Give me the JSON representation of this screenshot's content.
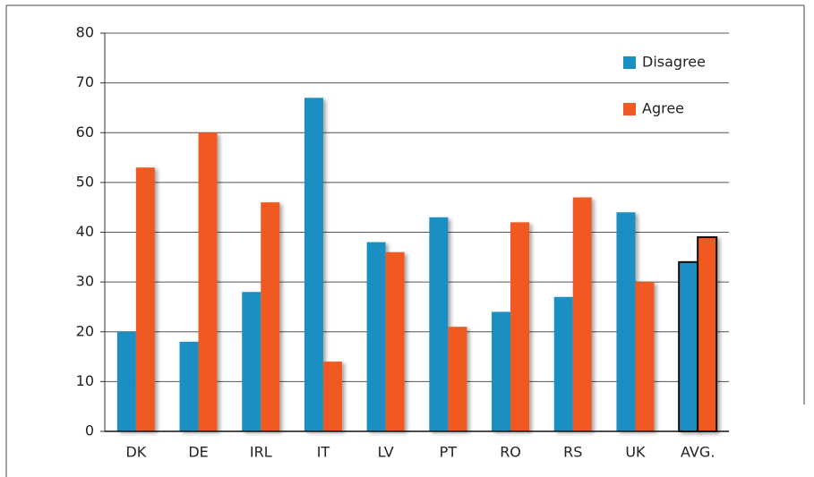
{
  "chart_data": {
    "type": "bar",
    "categories": [
      "DK",
      "DE",
      "IRL",
      "IT",
      "LV",
      "PT",
      "RO",
      "RS",
      "UK",
      "AVG."
    ],
    "series": [
      {
        "name": "Disagree",
        "color": "#1a8fc2",
        "values": [
          20,
          18,
          28,
          67,
          38,
          43,
          24,
          27,
          44,
          34
        ]
      },
      {
        "name": "Agree",
        "color": "#f05a22",
        "values": [
          53,
          60,
          46,
          14,
          36,
          21,
          42,
          47,
          30,
          39
        ]
      }
    ],
    "ylim": [
      0,
      80
    ],
    "yticks": [
      0,
      10,
      20,
      30,
      40,
      50,
      60,
      70,
      80
    ],
    "grid": true,
    "legend": "top-right",
    "highlight": {
      "category_index": 9,
      "stroke": "#111"
    }
  }
}
